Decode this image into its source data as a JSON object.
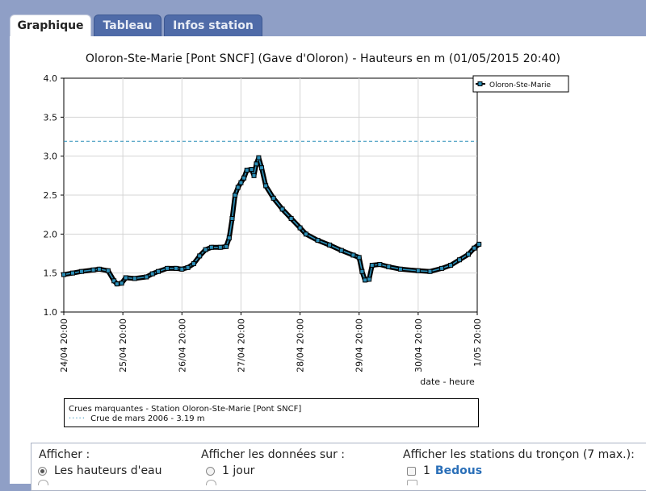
{
  "tabs": [
    {
      "label": "Graphique",
      "active": true
    },
    {
      "label": "Tableau",
      "active": false
    },
    {
      "label": "Infos station",
      "active": false
    }
  ],
  "chart_data": {
    "type": "line",
    "title": "Oloron-Ste-Marie [Pont SNCF] (Gave d'Oloron) - Hauteurs en m (01/05/2015 20:40)",
    "xlabel": "date - heure",
    "ylabel": "",
    "ylim": [
      1.0,
      4.0
    ],
    "yticks": [
      "1.0",
      "1.5",
      "2.0",
      "2.5",
      "3.0",
      "3.5",
      "4.0"
    ],
    "xticks": [
      "24/04 20:00",
      "25/04 20:00",
      "26/04 20:00",
      "27/04 20:00",
      "28/04 20:00",
      "29/04 20:00",
      "30/04 20:00",
      "1/05 20:00"
    ],
    "legend": "top-right",
    "grid": true,
    "series": [
      {
        "name": "Oloron-Ste-Marie",
        "color": "#2b8fb8",
        "points": [
          [
            0.0,
            1.48
          ],
          [
            0.15,
            1.5
          ],
          [
            0.3,
            1.52
          ],
          [
            0.5,
            1.54
          ],
          [
            0.6,
            1.55
          ],
          [
            0.75,
            1.53
          ],
          [
            0.85,
            1.4
          ],
          [
            0.9,
            1.36
          ],
          [
            0.98,
            1.37
          ],
          [
            1.05,
            1.44
          ],
          [
            1.2,
            1.43
          ],
          [
            1.4,
            1.45
          ],
          [
            1.5,
            1.49
          ],
          [
            1.6,
            1.52
          ],
          [
            1.75,
            1.56
          ],
          [
            1.9,
            1.56
          ],
          [
            2.0,
            1.55
          ],
          [
            2.1,
            1.57
          ],
          [
            2.2,
            1.62
          ],
          [
            2.3,
            1.72
          ],
          [
            2.4,
            1.8
          ],
          [
            2.5,
            1.83
          ],
          [
            2.65,
            1.83
          ],
          [
            2.75,
            1.84
          ],
          [
            2.8,
            1.95
          ],
          [
            2.85,
            2.2
          ],
          [
            2.9,
            2.5
          ],
          [
            2.95,
            2.6
          ],
          [
            3.0,
            2.66
          ],
          [
            3.05,
            2.72
          ],
          [
            3.1,
            2.82
          ],
          [
            3.18,
            2.83
          ],
          [
            3.22,
            2.75
          ],
          [
            3.26,
            2.9
          ],
          [
            3.3,
            2.98
          ],
          [
            3.35,
            2.85
          ],
          [
            3.42,
            2.62
          ],
          [
            3.55,
            2.46
          ],
          [
            3.7,
            2.32
          ],
          [
            3.85,
            2.2
          ],
          [
            4.0,
            2.08
          ],
          [
            4.1,
            2.0
          ],
          [
            4.3,
            1.92
          ],
          [
            4.5,
            1.86
          ],
          [
            4.7,
            1.79
          ],
          [
            4.9,
            1.73
          ],
          [
            5.0,
            1.7
          ],
          [
            5.05,
            1.52
          ],
          [
            5.1,
            1.41
          ],
          [
            5.17,
            1.42
          ],
          [
            5.22,
            1.6
          ],
          [
            5.35,
            1.61
          ],
          [
            5.5,
            1.58
          ],
          [
            5.7,
            1.55
          ],
          [
            6.0,
            1.53
          ],
          [
            6.2,
            1.52
          ],
          [
            6.4,
            1.56
          ],
          [
            6.55,
            1.6
          ],
          [
            6.7,
            1.67
          ],
          [
            6.85,
            1.74
          ],
          [
            6.95,
            1.82
          ],
          [
            7.03,
            1.87
          ]
        ]
      }
    ],
    "reference_line": {
      "label": "Crue de mars 2006 - 3.19 m",
      "value": 3.19,
      "color": "#2b8fb8"
    }
  },
  "legend_box": {
    "title": "Crues marquantes - Station Oloron-Ste-Marie [Pont SNCF]",
    "dash": "·····",
    "entry": "Crue de mars 2006 - 3.19 m"
  },
  "options": {
    "display_title": "Afficher :",
    "display_option": "Les hauteurs d'eau",
    "period_title": "Afficher les données sur :",
    "period_option": "1 jour",
    "stations_title": "Afficher les stations du tronçon (7 max.):",
    "station_number": "1",
    "station_name": "Bedous"
  }
}
